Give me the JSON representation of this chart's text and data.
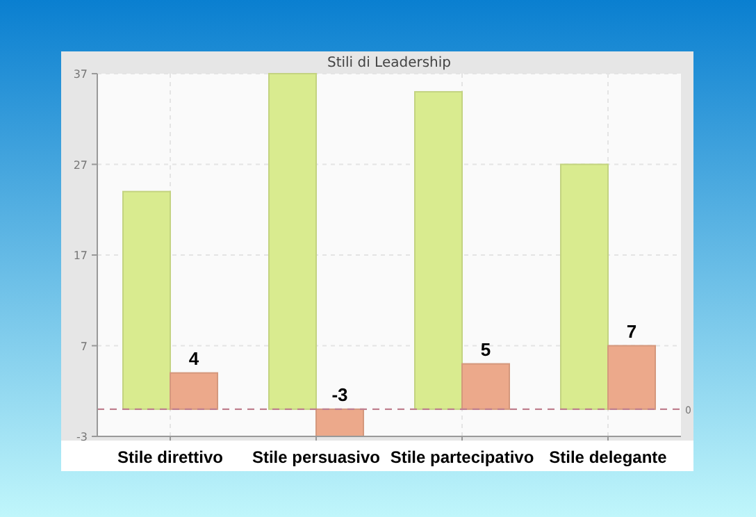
{
  "chart_data": {
    "type": "bar",
    "title": "Stili di Leadership",
    "categories": [
      "Stile direttivo",
      "Stile persuasivo",
      "Stile partecipativo",
      "Stile delegante"
    ],
    "series": [
      {
        "color": "#d9eb8f",
        "values": [
          24,
          37,
          35,
          27
        ]
      },
      {
        "color": "#eca98b",
        "values": [
          4,
          -3,
          5,
          7
        ],
        "value_labels": [
          "4",
          "-3",
          "5",
          "7"
        ]
      }
    ],
    "ylim": [
      -3,
      37
    ],
    "yticks": [
      -3,
      7,
      17,
      27,
      37
    ],
    "grid": true,
    "ref_lines": [
      {
        "axis": "y",
        "value": 0,
        "label": "0",
        "color": "#c08090",
        "line_style": "dashed"
      }
    ]
  }
}
